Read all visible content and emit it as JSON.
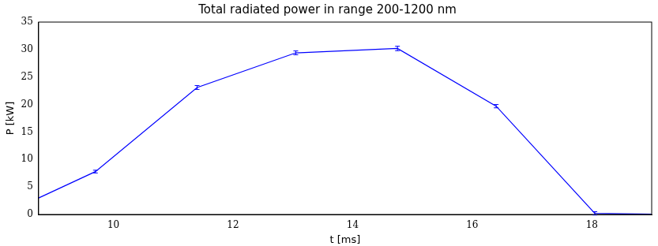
{
  "chart_data": {
    "type": "line",
    "title": "Total radiated power in range 200-1200 nm",
    "x_label": "t [ms]",
    "y_label": "P [kW]",
    "x": [
      8.75,
      9.7,
      11.4,
      13.05,
      14.75,
      16.4,
      18.05,
      19.0
    ],
    "values": [
      3.0,
      7.8,
      23.1,
      29.4,
      30.2,
      19.7,
      0.2,
      0.05
    ],
    "errors": [
      null,
      0.25,
      0.35,
      0.35,
      0.4,
      0.3,
      0.3,
      null
    ],
    "color": "#0000ff",
    "xlim": [
      8.75,
      19
    ],
    "xticks": [
      10,
      12,
      14,
      16,
      18
    ],
    "ylim": [
      0,
      35
    ],
    "yticks": [
      0,
      5,
      10,
      15,
      20,
      25,
      30,
      35
    ],
    "grid": false
  }
}
